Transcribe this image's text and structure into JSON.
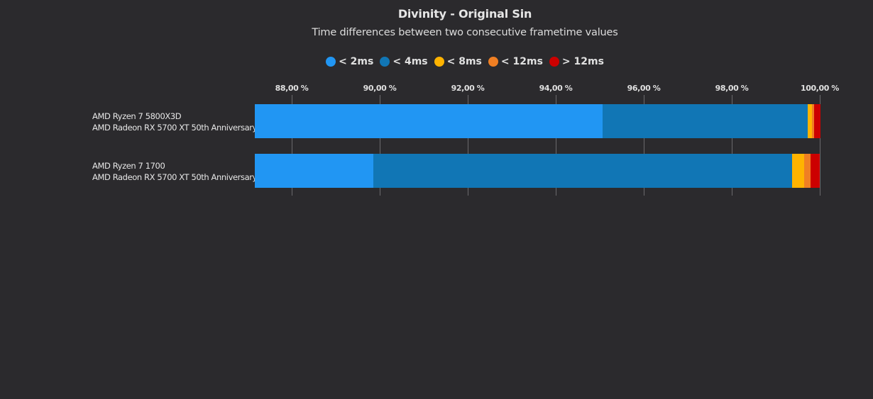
{
  "chart_data": {
    "type": "bar",
    "orientation": "horizontal",
    "stacked": true,
    "title": "Divinity - Original Sin",
    "subtitle": "Time differences between two consecutive frametime values",
    "xlabel": "",
    "ylabel": "",
    "xlim": [
      87.15,
      100
    ],
    "x_ticks": [
      "88,00 %",
      "90,00 %",
      "92,00 %",
      "94,00 %",
      "96,00 %",
      "98,00 %",
      "100,00 %"
    ],
    "x_tick_values": [
      88,
      90,
      92,
      94,
      96,
      98,
      100
    ],
    "grid": true,
    "legend_position": "top",
    "categories": [
      [
        "AMD Ryzen 7 5800X3D",
        "AMD Radeon RX 5700 XT 50th Anniversary"
      ],
      [
        "AMD Ryzen 7 1700",
        "AMD Radeon RX 5700 XT 50th Anniversary"
      ]
    ],
    "series": [
      {
        "name": "< 2ms",
        "color": "#2196f3",
        "values": [
          95.06,
          89.85
        ]
      },
      {
        "name": "< 4ms",
        "color": "#1176b5",
        "values": [
          4.66,
          9.52
        ]
      },
      {
        "name": "< 8ms",
        "color": "#ffb300",
        "values": [
          0.11,
          0.28
        ]
      },
      {
        "name": "< 12ms",
        "color": "#f07f23",
        "values": [
          0.04,
          0.14
        ]
      },
      {
        "name": "> 12ms",
        "color": "#cc0000",
        "values": [
          0.14,
          0.21
        ]
      }
    ]
  },
  "header": {
    "title": "Divinity - Original Sin",
    "subtitle": "Time differences between two consecutive frametime values"
  },
  "legend": [
    {
      "label": "< 2ms",
      "color": "#2196f3"
    },
    {
      "label": "< 4ms",
      "color": "#1176b5"
    },
    {
      "label": "< 8ms",
      "color": "#ffb300"
    },
    {
      "label": "< 12ms",
      "color": "#f07f23"
    },
    {
      "label": "> 12ms",
      "color": "#cc0000"
    }
  ],
  "axis": {
    "ticks": [
      "88,00 %",
      "90,00 %",
      "92,00 %",
      "94,00 %",
      "96,00 %",
      "98,00 %",
      "100,00 %"
    ]
  },
  "rows": [
    {
      "cpu": "AMD Ryzen 7 5800X3D",
      "gpu": "AMD Radeon RX 5700 XT 50th Anniversary"
    },
    {
      "cpu": "AMD Ryzen 7 1700",
      "gpu": "AMD Radeon RX 5700 XT 50th Anniversary"
    }
  ]
}
